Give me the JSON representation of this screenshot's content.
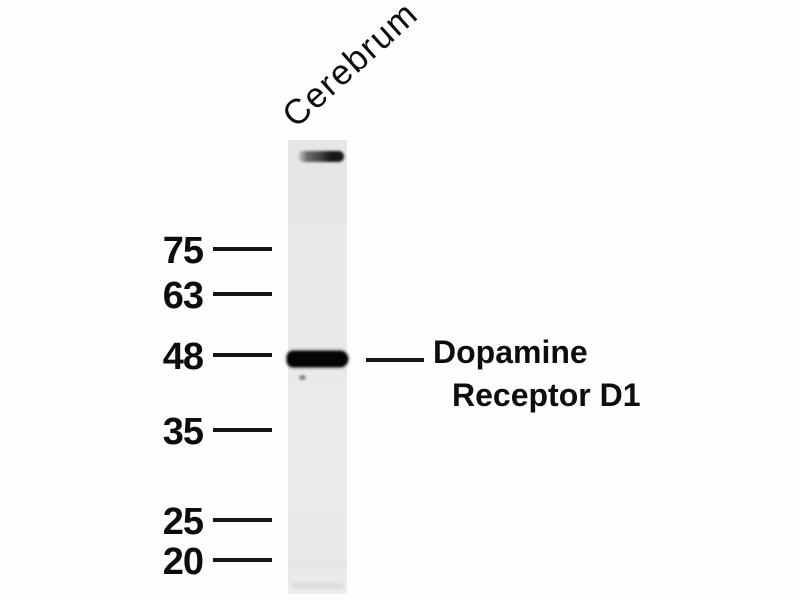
{
  "figure": {
    "type": "western-blot",
    "lane_label": "Cerebrum",
    "ladder": {
      "labels": [
        "75",
        "63",
        "48",
        "35",
        "25",
        "20"
      ]
    },
    "annotation": {
      "line1": "Dopamine",
      "line2": "Receptor D1"
    },
    "bands": [
      {
        "name": "high-mw-band",
        "position": "lane-top"
      },
      {
        "name": "target-band",
        "aligned_marker": "48"
      }
    ],
    "colors": {
      "background": "#fefefe",
      "lane": "#eae9e7",
      "band": "#050505",
      "text": "#0d0d0d"
    }
  }
}
